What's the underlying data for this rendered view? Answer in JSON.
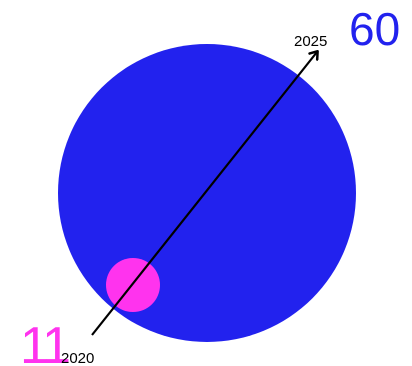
{
  "chart_data": {
    "type": "bubble",
    "points": [
      {
        "x": "2020",
        "value": 11,
        "color": "#ff33ee"
      },
      {
        "x": "2025",
        "value": 60,
        "color": "#2222ee"
      }
    ],
    "arrow_color": "#000000",
    "label_color": "#000000"
  }
}
